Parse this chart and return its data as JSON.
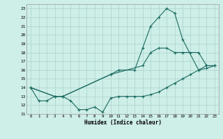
{
  "xlabel": "Humidex (Indice chaleur)",
  "xlim": [
    -0.5,
    23.5
  ],
  "ylim": [
    11,
    23.5
  ],
  "yticks": [
    11,
    12,
    13,
    14,
    15,
    16,
    17,
    18,
    19,
    20,
    21,
    22,
    23
  ],
  "xticks": [
    0,
    1,
    2,
    3,
    4,
    5,
    6,
    7,
    8,
    9,
    10,
    11,
    12,
    13,
    14,
    15,
    16,
    17,
    18,
    19,
    20,
    21,
    22,
    23
  ],
  "bg_color": "#ceeee8",
  "grid_color": "#aad4cc",
  "line_color": "#1a6b60",
  "lines": [
    {
      "x": [
        0,
        1,
        2,
        3,
        4,
        5,
        6,
        7,
        8,
        9,
        10,
        11,
        12,
        13,
        14,
        15,
        16,
        17,
        18,
        19,
        20,
        21,
        22,
        23
      ],
      "y": [
        14,
        12.5,
        12.5,
        13,
        13,
        12.5,
        11.5,
        11.5,
        11.8,
        11.2,
        12.8,
        13.0,
        13.0,
        13.0,
        13.0,
        13.2,
        13.5,
        14.0,
        14.5,
        15.0,
        15.5,
        16.0,
        16.2,
        16.5
      ]
    },
    {
      "x": [
        0,
        3,
        4,
        10,
        14,
        15,
        16,
        17,
        18,
        19,
        20,
        21,
        22,
        23
      ],
      "y": [
        14,
        13,
        13,
        15.5,
        16.5,
        18.0,
        18.5,
        18.5,
        18.0,
        18.0,
        18.0,
        18.0,
        16.5,
        16.5
      ]
    },
    {
      "x": [
        0,
        3,
        4,
        10,
        11,
        13,
        14,
        15,
        16,
        17,
        18,
        19,
        21,
        22,
        23
      ],
      "y": [
        14,
        13,
        13,
        15.5,
        16.0,
        16.0,
        18.5,
        21.0,
        22.0,
        23.0,
        22.5,
        19.5,
        16.0,
        16.5,
        16.5
      ]
    }
  ]
}
